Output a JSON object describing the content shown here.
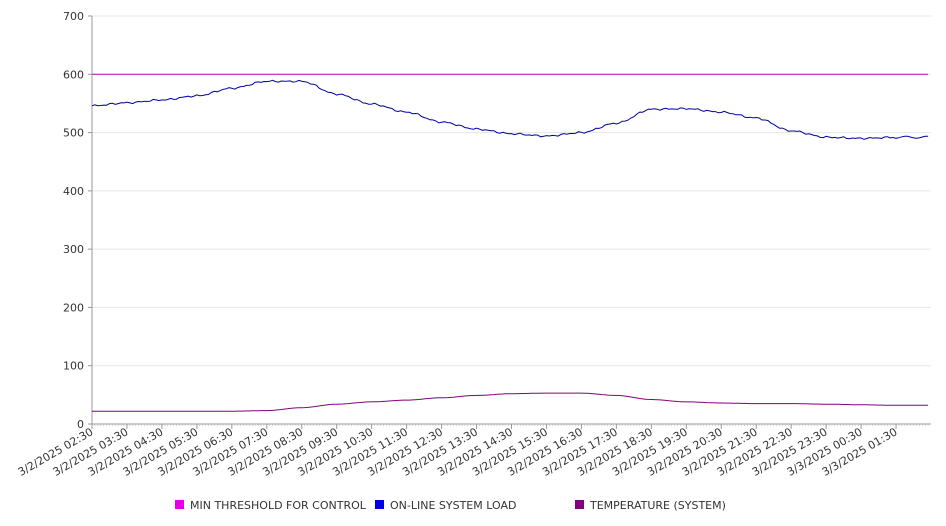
{
  "chart_data": {
    "type": "line",
    "title": "",
    "xlabel": "",
    "ylabel": "",
    "ylim": [
      0,
      700
    ],
    "yticks": [
      0,
      100,
      200,
      300,
      400,
      500,
      600,
      700
    ],
    "grid": true,
    "legend_position": "bottom",
    "x_labels": [
      "3/2/2025 02:30",
      "3/2/2025 03:30",
      "3/2/2025 04:30",
      "3/2/2025 05:30",
      "3/2/2025 06:30",
      "3/2/2025 07:30",
      "3/2/2025 08:30",
      "3/2/2025 09:30",
      "3/2/2025 10:30",
      "3/2/2025 11:30",
      "3/2/2025 12:30",
      "3/2/2025 13:30",
      "3/2/2025 14:30",
      "3/2/2025 15:30",
      "3/2/2025 16:30",
      "3/2/2025 17:30",
      "3/2/2025 18:30",
      "3/2/2025 19:30",
      "3/2/2025 20:30",
      "3/2/2025 21:30",
      "3/2/2025 22:30",
      "3/2/2025 23:30",
      "3/3/2025 00:30",
      "3/3/2025 01:30"
    ],
    "series": [
      {
        "name": "MIN THRESHOLD FOR CONTROL",
        "color": "#E000E0",
        "line_color": "#C000C0",
        "values": [
          600,
          600,
          600,
          600,
          600,
          600,
          600,
          600,
          600,
          600,
          600,
          600,
          600,
          600,
          600,
          600,
          600,
          600,
          600,
          600,
          600,
          600,
          600,
          600
        ]
      },
      {
        "name": "ON-LINE SYSTEM LOAD",
        "color": "#0000E0",
        "line_color": "#0000A0",
        "values": [
          546,
          551,
          556,
          563,
          576,
          588,
          588,
          566,
          549,
          535,
          518,
          506,
          498,
          494,
          500,
          516,
          540,
          541,
          535,
          525,
          503,
          492,
          490,
          492
        ]
      },
      {
        "name": "TEMPERATURE (SYSTEM)",
        "color": "#800080",
        "line_color": "#800080",
        "values": [
          22,
          22,
          22,
          22,
          22,
          23,
          28,
          34,
          38,
          41,
          45,
          49,
          52,
          53,
          53,
          49,
          42,
          38,
          36,
          35,
          35,
          34,
          33,
          32
        ]
      }
    ]
  }
}
